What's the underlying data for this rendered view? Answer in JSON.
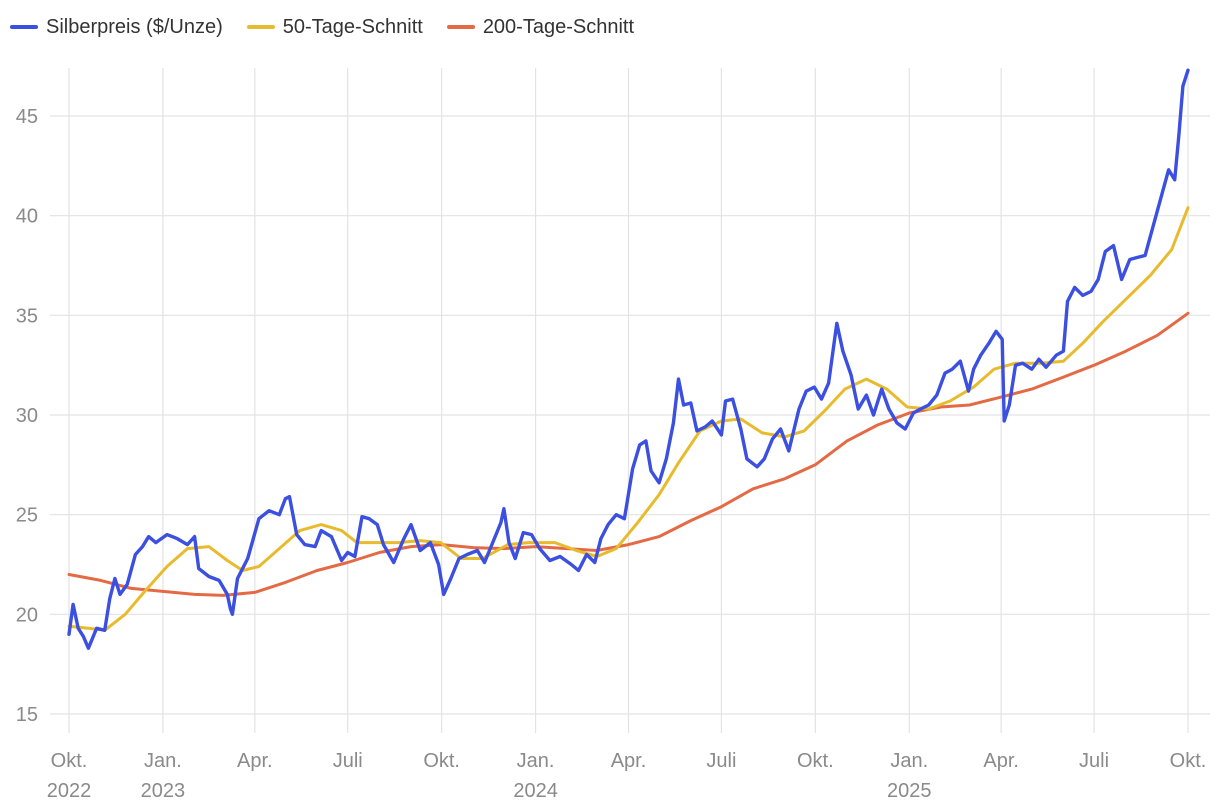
{
  "chart_data": {
    "type": "line",
    "title": "",
    "xlabel": "",
    "ylabel": "",
    "ylim": [
      15,
      47.5
    ],
    "yticks": [
      15,
      20,
      25,
      30,
      35,
      40,
      45
    ],
    "xlim": [
      "2022-10-01",
      "2025-10-01"
    ],
    "xticks": [
      {
        "date": "2022-10-01",
        "label": "Okt.",
        "year": "2022"
      },
      {
        "date": "2023-01-01",
        "label": "Jan.",
        "year": "2023"
      },
      {
        "date": "2023-04-01",
        "label": "Apr.",
        "year": ""
      },
      {
        "date": "2023-07-01",
        "label": "Juli",
        "year": ""
      },
      {
        "date": "2023-10-01",
        "label": "Okt.",
        "year": ""
      },
      {
        "date": "2024-01-01",
        "label": "Jan.",
        "year": "2024"
      },
      {
        "date": "2024-04-01",
        "label": "Apr.",
        "year": ""
      },
      {
        "date": "2024-07-01",
        "label": "Juli",
        "year": ""
      },
      {
        "date": "2024-10-01",
        "label": "Okt.",
        "year": ""
      },
      {
        "date": "2025-01-01",
        "label": "Jan.",
        "year": "2025"
      },
      {
        "date": "2025-04-01",
        "label": "Apr.",
        "year": ""
      },
      {
        "date": "2025-07-01",
        "label": "Juli",
        "year": ""
      },
      {
        "date": "2025-10-01",
        "label": "Okt.",
        "year": ""
      }
    ],
    "grid": true,
    "legend_position": "top-left",
    "series": [
      {
        "name": "Silberpreis ($/Unze)",
        "color": "#3b4fe0",
        "points": [
          [
            "2022-10-01",
            19.0
          ],
          [
            "2022-10-05",
            20.5
          ],
          [
            "2022-10-10",
            19.3
          ],
          [
            "2022-10-15",
            18.9
          ],
          [
            "2022-10-20",
            18.3
          ],
          [
            "2022-10-28",
            19.3
          ],
          [
            "2022-11-05",
            19.2
          ],
          [
            "2022-11-10",
            20.8
          ],
          [
            "2022-11-15",
            21.8
          ],
          [
            "2022-11-20",
            21.0
          ],
          [
            "2022-11-27",
            21.5
          ],
          [
            "2022-12-05",
            23.0
          ],
          [
            "2022-12-12",
            23.4
          ],
          [
            "2022-12-18",
            23.9
          ],
          [
            "2022-12-25",
            23.6
          ],
          [
            "2023-01-05",
            24.0
          ],
          [
            "2023-01-15",
            23.8
          ],
          [
            "2023-01-25",
            23.5
          ],
          [
            "2023-02-01",
            23.9
          ],
          [
            "2023-02-05",
            22.3
          ],
          [
            "2023-02-15",
            21.9
          ],
          [
            "2023-02-25",
            21.7
          ],
          [
            "2023-03-05",
            21.0
          ],
          [
            "2023-03-08",
            20.3
          ],
          [
            "2023-03-10",
            20.0
          ],
          [
            "2023-03-15",
            21.8
          ],
          [
            "2023-03-25",
            22.8
          ],
          [
            "2023-04-05",
            24.8
          ],
          [
            "2023-04-15",
            25.2
          ],
          [
            "2023-04-25",
            25.0
          ],
          [
            "2023-05-01",
            25.8
          ],
          [
            "2023-05-05",
            25.9
          ],
          [
            "2023-05-12",
            24.0
          ],
          [
            "2023-05-20",
            23.5
          ],
          [
            "2023-05-30",
            23.4
          ],
          [
            "2023-06-05",
            24.2
          ],
          [
            "2023-06-15",
            23.9
          ],
          [
            "2023-06-25",
            22.7
          ],
          [
            "2023-07-01",
            23.1
          ],
          [
            "2023-07-08",
            22.9
          ],
          [
            "2023-07-15",
            24.9
          ],
          [
            "2023-07-22",
            24.8
          ],
          [
            "2023-07-30",
            24.5
          ],
          [
            "2023-08-05",
            23.5
          ],
          [
            "2023-08-15",
            22.6
          ],
          [
            "2023-08-25",
            23.8
          ],
          [
            "2023-09-01",
            24.5
          ],
          [
            "2023-09-10",
            23.2
          ],
          [
            "2023-09-20",
            23.6
          ],
          [
            "2023-09-28",
            22.5
          ],
          [
            "2023-10-03",
            21.0
          ],
          [
            "2023-10-10",
            21.8
          ],
          [
            "2023-10-18",
            22.8
          ],
          [
            "2023-10-26",
            23.0
          ],
          [
            "2023-11-05",
            23.2
          ],
          [
            "2023-11-12",
            22.6
          ],
          [
            "2023-11-20",
            23.6
          ],
          [
            "2023-11-28",
            24.6
          ],
          [
            "2023-12-01",
            25.3
          ],
          [
            "2023-12-06",
            23.6
          ],
          [
            "2023-12-12",
            22.8
          ],
          [
            "2023-12-20",
            24.1
          ],
          [
            "2023-12-28",
            24.0
          ],
          [
            "2024-01-05",
            23.3
          ],
          [
            "2024-01-15",
            22.7
          ],
          [
            "2024-01-25",
            22.9
          ],
          [
            "2024-02-05",
            22.5
          ],
          [
            "2024-02-12",
            22.2
          ],
          [
            "2024-02-20",
            23.0
          ],
          [
            "2024-02-28",
            22.6
          ],
          [
            "2024-03-05",
            23.8
          ],
          [
            "2024-03-12",
            24.5
          ],
          [
            "2024-03-20",
            25.0
          ],
          [
            "2024-03-28",
            24.8
          ],
          [
            "2024-04-05",
            27.3
          ],
          [
            "2024-04-12",
            28.5
          ],
          [
            "2024-04-18",
            28.7
          ],
          [
            "2024-04-23",
            27.2
          ],
          [
            "2024-05-01",
            26.6
          ],
          [
            "2024-05-08",
            27.8
          ],
          [
            "2024-05-15",
            29.6
          ],
          [
            "2024-05-20",
            31.8
          ],
          [
            "2024-05-25",
            30.5
          ],
          [
            "2024-06-01",
            30.6
          ],
          [
            "2024-06-07",
            29.2
          ],
          [
            "2024-06-15",
            29.4
          ],
          [
            "2024-06-22",
            29.7
          ],
          [
            "2024-07-01",
            29.0
          ],
          [
            "2024-07-05",
            30.7
          ],
          [
            "2024-07-12",
            30.8
          ],
          [
            "2024-07-20",
            29.3
          ],
          [
            "2024-07-26",
            27.8
          ],
          [
            "2024-08-05",
            27.4
          ],
          [
            "2024-08-12",
            27.8
          ],
          [
            "2024-08-20",
            28.8
          ],
          [
            "2024-08-28",
            29.3
          ],
          [
            "2024-09-05",
            28.2
          ],
          [
            "2024-09-15",
            30.3
          ],
          [
            "2024-09-22",
            31.2
          ],
          [
            "2024-09-30",
            31.4
          ],
          [
            "2024-10-07",
            30.8
          ],
          [
            "2024-10-14",
            31.6
          ],
          [
            "2024-10-22",
            34.6
          ],
          [
            "2024-10-28",
            33.2
          ],
          [
            "2024-11-05",
            32.0
          ],
          [
            "2024-11-12",
            30.3
          ],
          [
            "2024-11-20",
            31.0
          ],
          [
            "2024-11-27",
            30.0
          ],
          [
            "2024-12-05",
            31.3
          ],
          [
            "2024-12-12",
            30.3
          ],
          [
            "2024-12-20",
            29.6
          ],
          [
            "2024-12-28",
            29.3
          ],
          [
            "2025-01-05",
            30.1
          ],
          [
            "2025-01-12",
            30.3
          ],
          [
            "2025-01-20",
            30.5
          ],
          [
            "2025-01-28",
            31.0
          ],
          [
            "2025-02-05",
            32.1
          ],
          [
            "2025-02-12",
            32.3
          ],
          [
            "2025-02-20",
            32.7
          ],
          [
            "2025-02-28",
            31.2
          ],
          [
            "2025-03-05",
            32.3
          ],
          [
            "2025-03-12",
            33.0
          ],
          [
            "2025-03-20",
            33.6
          ],
          [
            "2025-03-27",
            34.2
          ],
          [
            "2025-04-02",
            33.8
          ],
          [
            "2025-04-04",
            29.7
          ],
          [
            "2025-04-09",
            30.5
          ],
          [
            "2025-04-15",
            32.5
          ],
          [
            "2025-04-22",
            32.6
          ],
          [
            "2025-05-01",
            32.3
          ],
          [
            "2025-05-08",
            32.8
          ],
          [
            "2025-05-15",
            32.4
          ],
          [
            "2025-05-25",
            33.0
          ],
          [
            "2025-06-01",
            33.2
          ],
          [
            "2025-06-05",
            35.7
          ],
          [
            "2025-06-12",
            36.4
          ],
          [
            "2025-06-20",
            36.0
          ],
          [
            "2025-06-28",
            36.2
          ],
          [
            "2025-07-05",
            36.8
          ],
          [
            "2025-07-12",
            38.2
          ],
          [
            "2025-07-20",
            38.5
          ],
          [
            "2025-07-28",
            36.8
          ],
          [
            "2025-08-05",
            37.8
          ],
          [
            "2025-08-12",
            37.9
          ],
          [
            "2025-08-20",
            38.0
          ],
          [
            "2025-08-28",
            39.5
          ],
          [
            "2025-09-05",
            41.0
          ],
          [
            "2025-09-12",
            42.3
          ],
          [
            "2025-09-18",
            41.8
          ],
          [
            "2025-09-22",
            44.0
          ],
          [
            "2025-09-26",
            46.5
          ],
          [
            "2025-10-01",
            47.3
          ]
        ]
      },
      {
        "name": "50-Tage-Schnitt",
        "color": "#e8bb2e",
        "points": [
          [
            "2022-10-01",
            19.4
          ],
          [
            "2022-10-20",
            19.3
          ],
          [
            "2022-11-05",
            19.2
          ],
          [
            "2022-11-25",
            20.0
          ],
          [
            "2022-12-15",
            21.2
          ],
          [
            "2023-01-05",
            22.4
          ],
          [
            "2023-01-25",
            23.3
          ],
          [
            "2023-02-15",
            23.4
          ],
          [
            "2023-03-05",
            22.7
          ],
          [
            "2023-03-20",
            22.2
          ],
          [
            "2023-04-05",
            22.4
          ],
          [
            "2023-04-25",
            23.3
          ],
          [
            "2023-05-15",
            24.2
          ],
          [
            "2023-06-05",
            24.5
          ],
          [
            "2023-06-25",
            24.2
          ],
          [
            "2023-07-10",
            23.6
          ],
          [
            "2023-07-25",
            23.6
          ],
          [
            "2023-08-20",
            23.6
          ],
          [
            "2023-09-10",
            23.7
          ],
          [
            "2023-09-30",
            23.6
          ],
          [
            "2023-10-20",
            22.8
          ],
          [
            "2023-11-10",
            22.8
          ],
          [
            "2023-12-05",
            23.5
          ],
          [
            "2023-12-25",
            23.6
          ],
          [
            "2024-01-20",
            23.6
          ],
          [
            "2024-02-10",
            23.2
          ],
          [
            "2024-03-01",
            22.9
          ],
          [
            "2024-03-20",
            23.3
          ],
          [
            "2024-04-10",
            24.6
          ],
          [
            "2024-05-01",
            26.0
          ],
          [
            "2024-05-20",
            27.6
          ],
          [
            "2024-06-10",
            29.2
          ],
          [
            "2024-07-01",
            29.7
          ],
          [
            "2024-07-20",
            29.8
          ],
          [
            "2024-08-10",
            29.1
          ],
          [
            "2024-09-01",
            28.9
          ],
          [
            "2024-09-20",
            29.2
          ],
          [
            "2024-10-10",
            30.2
          ],
          [
            "2024-10-30",
            31.3
          ],
          [
            "2024-11-20",
            31.8
          ],
          [
            "2024-12-10",
            31.3
          ],
          [
            "2024-12-30",
            30.4
          ],
          [
            "2025-01-20",
            30.3
          ],
          [
            "2025-02-10",
            30.7
          ],
          [
            "2025-03-05",
            31.4
          ],
          [
            "2025-03-25",
            32.3
          ],
          [
            "2025-04-15",
            32.6
          ],
          [
            "2025-05-10",
            32.6
          ],
          [
            "2025-06-01",
            32.7
          ],
          [
            "2025-06-20",
            33.6
          ],
          [
            "2025-07-10",
            34.7
          ],
          [
            "2025-08-01",
            35.8
          ],
          [
            "2025-08-25",
            37.0
          ],
          [
            "2025-09-15",
            38.3
          ],
          [
            "2025-10-01",
            40.4
          ]
        ]
      },
      {
        "name": "200-Tage-Schnitt",
        "color": "#e46a45",
        "points": [
          [
            "2022-10-01",
            22.0
          ],
          [
            "2022-11-01",
            21.7
          ],
          [
            "2022-12-01",
            21.3
          ],
          [
            "2023-01-01",
            21.15
          ],
          [
            "2023-02-01",
            21.0
          ],
          [
            "2023-03-01",
            20.95
          ],
          [
            "2023-04-01",
            21.1
          ],
          [
            "2023-05-01",
            21.6
          ],
          [
            "2023-06-01",
            22.2
          ],
          [
            "2023-07-01",
            22.6
          ],
          [
            "2023-08-01",
            23.1
          ],
          [
            "2023-09-01",
            23.4
          ],
          [
            "2023-10-01",
            23.5
          ],
          [
            "2023-11-01",
            23.35
          ],
          [
            "2023-12-01",
            23.3
          ],
          [
            "2024-01-01",
            23.4
          ],
          [
            "2024-02-01",
            23.3
          ],
          [
            "2024-03-01",
            23.2
          ],
          [
            "2024-04-01",
            23.5
          ],
          [
            "2024-05-01",
            23.9
          ],
          [
            "2024-06-01",
            24.7
          ],
          [
            "2024-07-01",
            25.4
          ],
          [
            "2024-08-01",
            26.3
          ],
          [
            "2024-09-01",
            26.8
          ],
          [
            "2024-10-01",
            27.5
          ],
          [
            "2024-11-01",
            28.7
          ],
          [
            "2024-12-01",
            29.5
          ],
          [
            "2025-01-01",
            30.1
          ],
          [
            "2025-02-01",
            30.4
          ],
          [
            "2025-03-01",
            30.5
          ],
          [
            "2025-04-01",
            30.9
          ],
          [
            "2025-05-01",
            31.3
          ],
          [
            "2025-06-01",
            31.9
          ],
          [
            "2025-07-01",
            32.5
          ],
          [
            "2025-08-01",
            33.2
          ],
          [
            "2025-09-01",
            34.0
          ],
          [
            "2025-10-01",
            35.1
          ]
        ]
      }
    ]
  }
}
